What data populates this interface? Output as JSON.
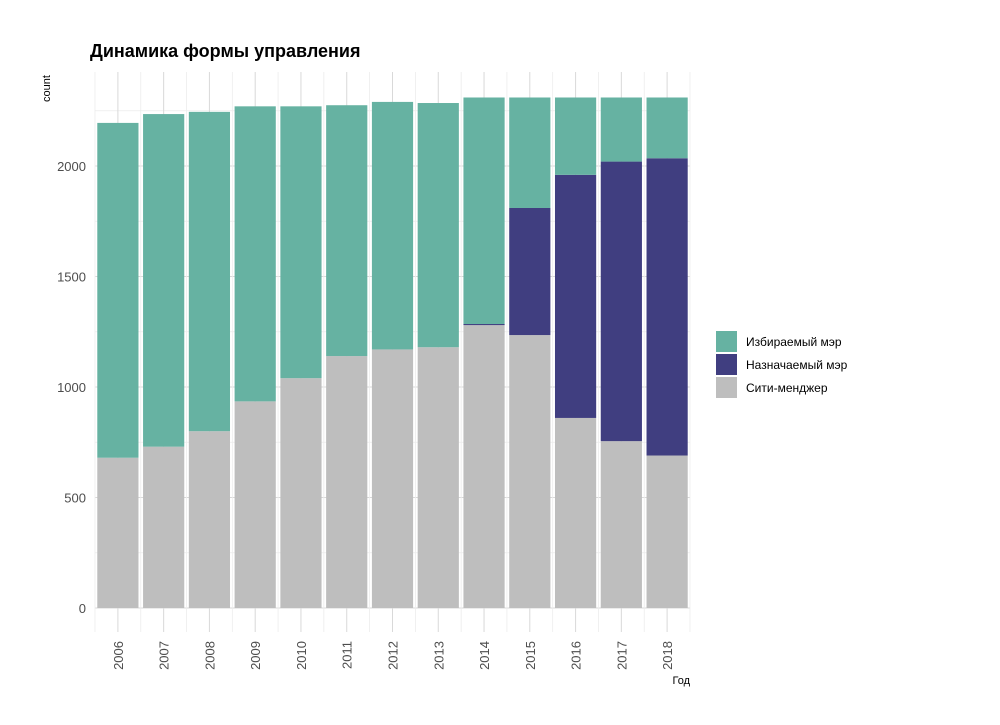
{
  "chart_data": {
    "type": "bar",
    "stacked": true,
    "title": "Динамика формы управления",
    "xlabel": "Год",
    "ylabel": "count",
    "categories": [
      "2006",
      "2007",
      "2008",
      "2009",
      "2010",
      "2011",
      "2012",
      "2013",
      "2014",
      "2015",
      "2016",
      "2017",
      "2018"
    ],
    "ylim": [
      -110,
      2330
    ],
    "yticks": [
      0,
      500,
      1000,
      1500,
      2000
    ],
    "grid": true,
    "legend_position": "right",
    "series": [
      {
        "name": "Сити-менджер",
        "color": "#bebebe",
        "values": [
          680,
          730,
          800,
          935,
          1040,
          1140,
          1170,
          1180,
          1280,
          1235,
          860,
          755,
          690
        ]
      },
      {
        "name": "Назначаемый мэр",
        "color": "#403e80",
        "values": [
          0,
          0,
          0,
          0,
          0,
          0,
          0,
          0,
          5,
          575,
          1100,
          1265,
          1345
        ]
      },
      {
        "name": "Избираемый мэр",
        "color": "#66b2a2",
        "values": [
          1515,
          1505,
          1445,
          1335,
          1230,
          1135,
          1120,
          1105,
          1025,
          500,
          350,
          290,
          275
        ]
      }
    ],
    "legend_order": [
      "Избираемый мэр",
      "Назначаемый мэр",
      "Сити-менджер"
    ]
  }
}
